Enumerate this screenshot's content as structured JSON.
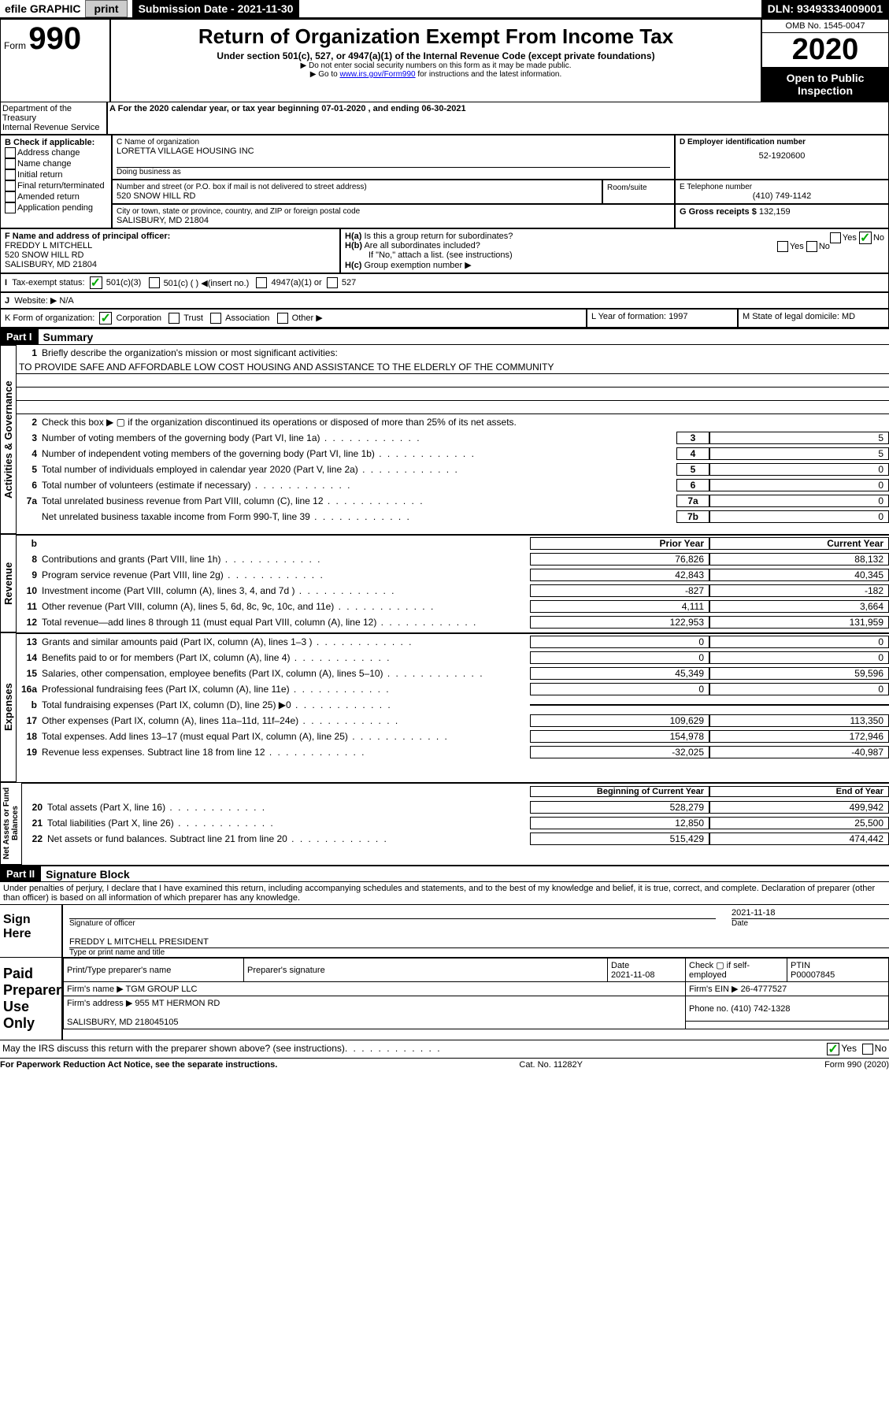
{
  "topbar": {
    "efile": "efile GRAPHIC",
    "print": "print",
    "subdate_label": "Submission Date - 2021-11-30",
    "dln": "DLN: 93493334009001"
  },
  "header": {
    "form_word": "Form",
    "form_num": "990",
    "dept": "Department of the Treasury\nInternal Revenue Service",
    "title": "Return of Organization Exempt From Income Tax",
    "subtitle": "Under section 501(c), 527, or 4947(a)(1) of the Internal Revenue Code (except private foundations)",
    "note1": "▶ Do not enter social security numbers on this form as it may be made public.",
    "note2_pre": "▶ Go to ",
    "note2_link": "www.irs.gov/Form990",
    "note2_post": " for instructions and the latest information.",
    "omb": "OMB No. 1545-0047",
    "year": "2020",
    "otpi": "Open to Public Inspection"
  },
  "periodA": "For the 2020 calendar year, or tax year beginning 07-01-2020    , and ending 06-30-2021",
  "sectionB": {
    "label": "B Check if applicable:",
    "addr": "Address change",
    "name": "Name change",
    "initial": "Initial return",
    "final": "Final return/terminated",
    "amended": "Amended return",
    "app": "Application pending"
  },
  "sectionC": {
    "label": "C Name of organization",
    "org": "LORETTA VILLAGE HOUSING INC",
    "dba": "Doing business as",
    "street_label": "Number and street (or P.O. box if mail is not delivered to street address)",
    "room": "Room/suite",
    "street": "520 SNOW HILL RD",
    "city_label": "City or town, state or province, country, and ZIP or foreign postal code",
    "city": "SALISBURY, MD  21804"
  },
  "sectionD": {
    "label": "D Employer identification number",
    "value": "52-1920600"
  },
  "sectionE": {
    "label": "E Telephone number",
    "value": "(410) 749-1142"
  },
  "sectionG": {
    "label": "G Gross receipts $",
    "value": "132,159"
  },
  "sectionF": {
    "label": "F  Name and address of principal officer:",
    "name": "FREDDY L MITCHELL",
    "addr1": "520 SNOW HILL RD",
    "addr2": "SALISBURY, MD  21804"
  },
  "sectionH": {
    "a": "Is this a group return for subordinates?",
    "b": "Are all subordinates included?",
    "bnote": "If \"No,\" attach a list. (see instructions)",
    "c": "Group exemption number ▶",
    "yes": "Yes",
    "no": "No"
  },
  "sectionI": {
    "label": "Tax-exempt status:",
    "c3": "501(c)(3)",
    "c": "501(c) (  ) ◀(insert no.)",
    "a1": "4947(a)(1) or",
    "s527": "527"
  },
  "sectionJ": {
    "label": "Website: ▶",
    "value": "N/A"
  },
  "sectionK": {
    "label": "K Form of organization:",
    "corp": "Corporation",
    "trust": "Trust",
    "assoc": "Association",
    "other": "Other ▶"
  },
  "sectionL": {
    "label": "L Year of formation:",
    "value": "1997"
  },
  "sectionM": {
    "label": "M State of legal domicile:",
    "value": "MD"
  },
  "part1": {
    "hdr": "Part I",
    "title": "Summary"
  },
  "summary": {
    "q1": "Briefly describe the organization's mission or most significant activities:",
    "mission": "TO PROVIDE SAFE AND AFFORDABLE LOW COST HOUSING AND ASSISTANCE TO THE ELDERLY OF THE COMMUNITY",
    "q2": "Check this box ▶ ▢  if the organization discontinued its operations or disposed of more than 25% of its net assets.",
    "lines_simple": [
      {
        "n": "3",
        "t": "Number of voting members of the governing body (Part VI, line 1a)",
        "box": "3",
        "v": "5"
      },
      {
        "n": "4",
        "t": "Number of independent voting members of the governing body (Part VI, line 1b)",
        "box": "4",
        "v": "5"
      },
      {
        "n": "5",
        "t": "Total number of individuals employed in calendar year 2020 (Part V, line 2a)",
        "box": "5",
        "v": "0"
      },
      {
        "n": "6",
        "t": "Total number of volunteers (estimate if necessary)",
        "box": "6",
        "v": "0"
      },
      {
        "n": "7a",
        "t": "Total unrelated business revenue from Part VIII, column (C), line 12",
        "box": "7a",
        "v": "0"
      },
      {
        "n": "",
        "t": "Net unrelated business taxable income from Form 990-T, line 39",
        "box": "7b",
        "v": "0"
      }
    ],
    "col_prior": "Prior Year",
    "col_current": "Current Year",
    "rev": [
      {
        "n": "8",
        "t": "Contributions and grants (Part VIII, line 1h)",
        "p": "76,826",
        "c": "88,132"
      },
      {
        "n": "9",
        "t": "Program service revenue (Part VIII, line 2g)",
        "p": "42,843",
        "c": "40,345"
      },
      {
        "n": "10",
        "t": "Investment income (Part VIII, column (A), lines 3, 4, and 7d )",
        "p": "-827",
        "c": "-182"
      },
      {
        "n": "11",
        "t": "Other revenue (Part VIII, column (A), lines 5, 6d, 8c, 9c, 10c, and 11e)",
        "p": "4,111",
        "c": "3,664"
      },
      {
        "n": "12",
        "t": "Total revenue—add lines 8 through 11 (must equal Part VIII, column (A), line 12)",
        "p": "122,953",
        "c": "131,959"
      }
    ],
    "exp": [
      {
        "n": "13",
        "t": "Grants and similar amounts paid (Part IX, column (A), lines 1–3 )",
        "p": "0",
        "c": "0"
      },
      {
        "n": "14",
        "t": "Benefits paid to or for members (Part IX, column (A), line 4)",
        "p": "0",
        "c": "0"
      },
      {
        "n": "15",
        "t": "Salaries, other compensation, employee benefits (Part IX, column (A), lines 5–10)",
        "p": "45,349",
        "c": "59,596"
      },
      {
        "n": "16a",
        "t": "Professional fundraising fees (Part IX, column (A), line 11e)",
        "p": "0",
        "c": "0"
      },
      {
        "n": "b",
        "t": "Total fundraising expenses (Part IX, column (D), line 25) ▶0",
        "p": "",
        "c": "",
        "shade": true
      },
      {
        "n": "17",
        "t": "Other expenses (Part IX, column (A), lines 11a–11d, 11f–24e)",
        "p": "109,629",
        "c": "113,350"
      },
      {
        "n": "18",
        "t": "Total expenses. Add lines 13–17 (must equal Part IX, column (A), line 25)",
        "p": "154,978",
        "c": "172,946"
      },
      {
        "n": "19",
        "t": "Revenue less expenses. Subtract line 18 from line 12",
        "p": "-32,025",
        "c": "-40,987"
      }
    ],
    "col_begin": "Beginning of Current Year",
    "col_end": "End of Year",
    "net": [
      {
        "n": "20",
        "t": "Total assets (Part X, line 16)",
        "p": "528,279",
        "c": "499,942"
      },
      {
        "n": "21",
        "t": "Total liabilities (Part X, line 26)",
        "p": "12,850",
        "c": "25,500"
      },
      {
        "n": "22",
        "t": "Net assets or fund balances. Subtract line 21 from line 20",
        "p": "515,429",
        "c": "474,442"
      }
    ]
  },
  "vlabels": {
    "gov": "Activities & Governance",
    "rev": "Revenue",
    "exp": "Expenses",
    "net": "Net Assets or Fund Balances"
  },
  "part2": {
    "hdr": "Part II",
    "title": "Signature Block",
    "decl": "Under penalties of perjury, I declare that I have examined this return, including accompanying schedules and statements, and to the best of my knowledge and belief, it is true, correct, and complete. Declaration of preparer (other than officer) is based on all information of which preparer has any knowledge."
  },
  "sign": {
    "here": "Sign Here",
    "sig_officer": "Signature of officer",
    "date_label": "Date",
    "date": "2021-11-18",
    "name": "FREDDY L MITCHELL  PRESIDENT",
    "name_label": "Type or print name and title"
  },
  "prep": {
    "title": "Paid Preparer Use Only",
    "h_name": "Print/Type preparer's name",
    "h_sig": "Preparer's signature",
    "h_date": "Date",
    "date": "2021-11-08",
    "h_check": "Check ▢ if self-employed",
    "h_ptin": "PTIN",
    "ptin": "P00007845",
    "firm_label": "Firm's name    ▶",
    "firm": "TGM GROUP LLC",
    "ein_label": "Firm's EIN ▶",
    "ein": "26-4777527",
    "addr_label": "Firm's address ▶",
    "addr1": "955 MT HERMON RD",
    "addr2": "SALISBURY, MD  218045105",
    "phone_label": "Phone no.",
    "phone": "(410) 742-1328"
  },
  "footer": {
    "discuss": "May the IRS discuss this return with the preparer shown above? (see instructions)",
    "paperwork": "For Paperwork Reduction Act Notice, see the separate instructions.",
    "cat": "Cat. No. 11282Y",
    "form": "Form 990 (2020)",
    "yes": "Yes",
    "no": "No"
  }
}
